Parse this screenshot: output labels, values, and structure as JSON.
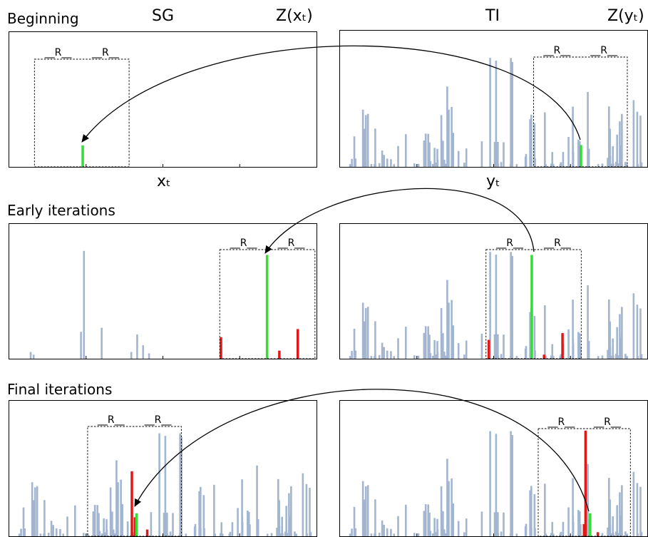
{
  "labels": {
    "sg": "SG",
    "ti": "TI",
    "z_x": "Z(xₜ)",
    "z_y": "Z(yₜ)",
    "x_axis": "xₜ",
    "y_axis": "yₜ",
    "r_mark": "__R__"
  },
  "sections": [
    {
      "title": "Beginning"
    },
    {
      "title": "Early iterations"
    },
    {
      "title": "Final iterations"
    }
  ],
  "colors": {
    "background_bar": "#a3b5cf",
    "selected_bar": "#33dd33",
    "neighbor_bar": "#e01818",
    "frame": "#000000"
  }
}
